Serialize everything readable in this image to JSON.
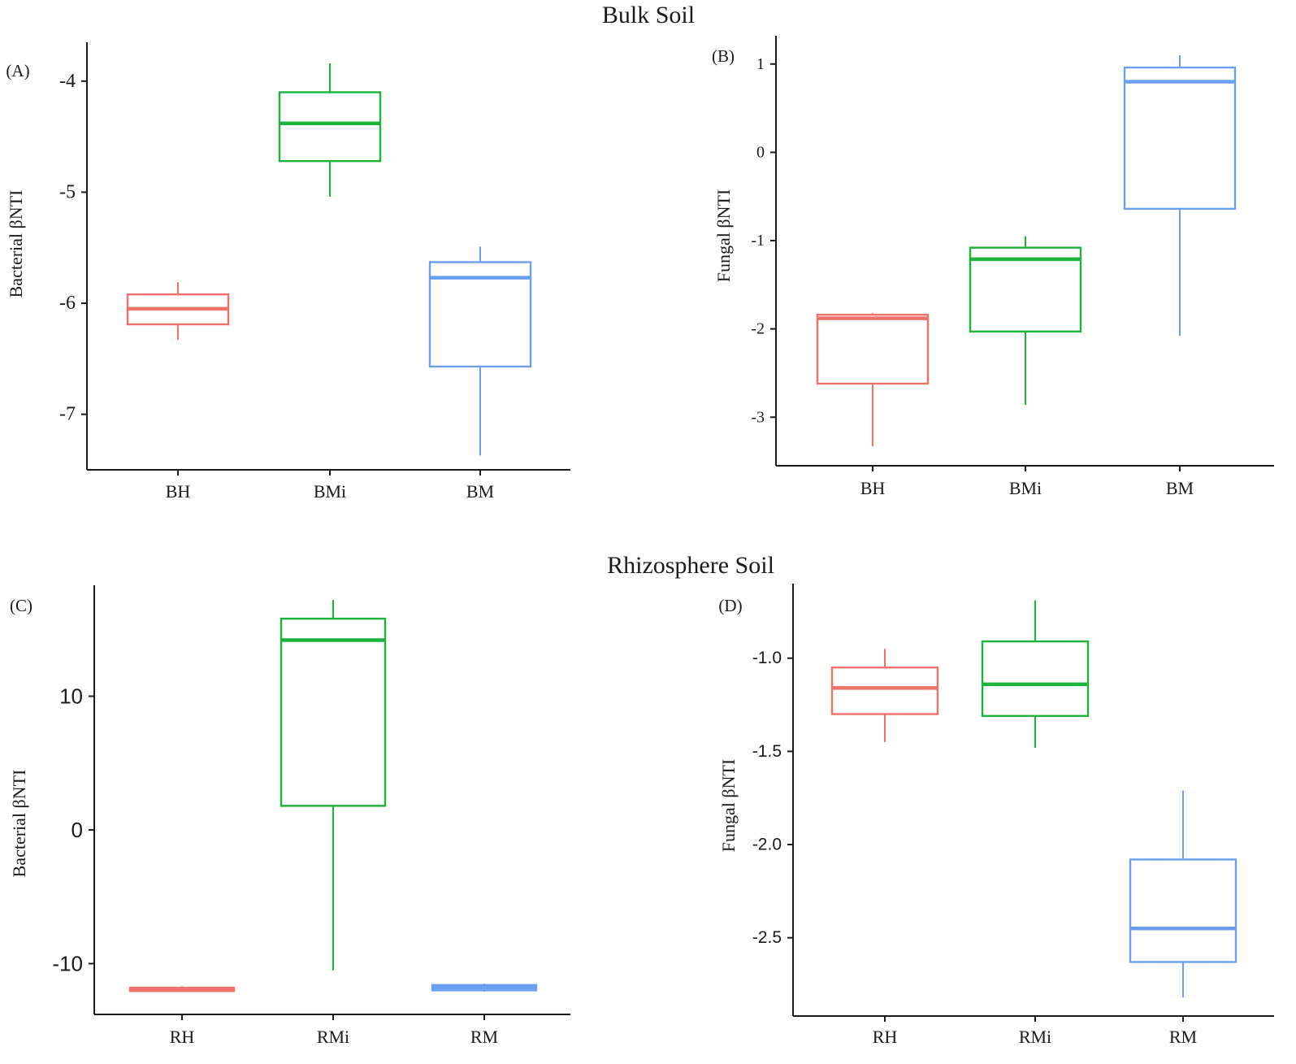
{
  "section_titles": {
    "top": "Bulk Soil",
    "bottom": "Rhizosphere Soil"
  },
  "colors": {
    "red": "#f0706a",
    "green": "#1bb33a",
    "blue": "#6a9ff0"
  },
  "chart_data": [
    {
      "type": "boxplot",
      "panel": "(A)",
      "ylabel": "Bacterial βNTI",
      "categories": [
        "BH",
        "BMi",
        "BM"
      ],
      "ylim": [
        -7.5,
        -3.65
      ],
      "yticks": [
        -7,
        -6,
        -5,
        -4
      ],
      "ytick_labels": [
        "-7",
        "-6",
        "-5",
        "-4"
      ],
      "boxes": [
        {
          "name": "BH",
          "color": "red",
          "min": -6.33,
          "q1": -6.19,
          "median": -6.05,
          "q3": -5.92,
          "max": -5.81
        },
        {
          "name": "BMi",
          "color": "green",
          "min": -5.04,
          "q1": -4.72,
          "median": -4.38,
          "q3": -4.1,
          "max": -3.84
        },
        {
          "name": "BM",
          "color": "blue",
          "min": -7.37,
          "q1": -6.57,
          "median": -5.77,
          "q3": -5.63,
          "max": -5.49
        }
      ]
    },
    {
      "type": "boxplot",
      "panel": "(B)",
      "ylabel": "Fungal βNTI",
      "categories": [
        "BH",
        "BMi",
        "BM"
      ],
      "ylim": [
        -3.55,
        1.32
      ],
      "yticks": [
        -3,
        -2,
        -1,
        0,
        1
      ],
      "ytick_labels": [
        "-3",
        "-2",
        "-1",
        "0",
        "1"
      ],
      "boxes": [
        {
          "name": "BH",
          "color": "red",
          "min": -3.33,
          "q1": -2.62,
          "median": -1.88,
          "q3": -1.84,
          "max": -1.82
        },
        {
          "name": "BMi",
          "color": "green",
          "min": -2.86,
          "q1": -2.03,
          "median": -1.21,
          "q3": -1.08,
          "max": -0.95
        },
        {
          "name": "BM",
          "color": "blue",
          "min": -2.08,
          "q1": -0.64,
          "median": 0.8,
          "q3": 0.96,
          "max": 1.1
        }
      ]
    },
    {
      "type": "boxplot",
      "panel": "(C)",
      "ylabel": "Bacterial βNTI",
      "categories": [
        "RH",
        "RMi",
        "RM"
      ],
      "ylim": [
        -13.8,
        18.3
      ],
      "yticks": [
        -10,
        0,
        10
      ],
      "ytick_labels": [
        "-10",
        "0",
        "10"
      ],
      "boxes": [
        {
          "name": "RH",
          "color": "red",
          "min": -12.1,
          "q1": -12.05,
          "median": -11.9,
          "q3": -11.8,
          "max": -11.7
        },
        {
          "name": "RMi",
          "color": "green",
          "min": -10.5,
          "q1": 1.8,
          "median": 14.2,
          "q3": 15.8,
          "max": 17.2
        },
        {
          "name": "RM",
          "color": "blue",
          "min": -12.1,
          "q1": -12.0,
          "median": -11.8,
          "q3": -11.6,
          "max": -11.5
        }
      ]
    },
    {
      "type": "boxplot",
      "panel": "(D)",
      "ylabel": "Fungal βNTI",
      "categories": [
        "RH",
        "RMi",
        "RM"
      ],
      "ylim": [
        -2.92,
        -0.6
      ],
      "yticks": [
        -2.5,
        -2.0,
        -1.5,
        -1.0
      ],
      "ytick_labels": [
        "-2.5",
        "-2.0",
        "-1.5",
        "-1.0"
      ],
      "boxes": [
        {
          "name": "RH",
          "color": "red",
          "min": -1.45,
          "q1": -1.3,
          "median": -1.16,
          "q3": -1.05,
          "max": -0.95
        },
        {
          "name": "RMi",
          "color": "green",
          "min": -1.48,
          "q1": -1.31,
          "median": -1.14,
          "q3": -0.91,
          "max": -0.69
        },
        {
          "name": "RM",
          "color": "blue",
          "min": -2.82,
          "q1": -2.63,
          "median": -2.45,
          "q3": -2.08,
          "max": -1.71
        }
      ]
    }
  ]
}
